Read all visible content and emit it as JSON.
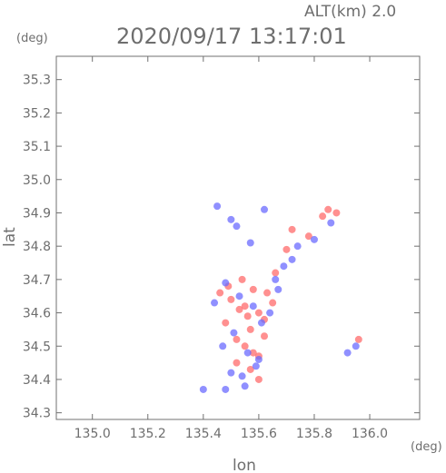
{
  "chart_data": {
    "type": "scatter",
    "title": "2020/09/17 13:17:01",
    "altitude_label": "ALT(km) 2.0",
    "xlabel": "lon",
    "ylabel": "lat",
    "x_unit": "(deg)",
    "y_unit": "(deg)",
    "xlim": [
      134.87,
      136.18
    ],
    "ylim": [
      34.28,
      35.37
    ],
    "xticks": [
      "135.0",
      "135.2",
      "135.4",
      "135.6",
      "135.8",
      "136.0"
    ],
    "yticks": [
      "34.3",
      "34.4",
      "34.5",
      "34.6",
      "34.7",
      "34.8",
      "34.9",
      "35.0",
      "35.1",
      "35.2",
      "35.3"
    ],
    "grid": false,
    "colors": {
      "positive": "#ff6b6b",
      "negative": "#6b6bff",
      "frame": "#707070"
    },
    "series": [
      {
        "color_role": "positive",
        "lon": [
          135.46,
          135.5,
          135.55,
          135.6,
          135.62,
          135.57,
          135.52,
          135.48,
          135.58,
          135.63,
          135.55,
          135.6,
          135.52,
          135.57,
          135.65,
          135.7,
          135.72,
          135.83,
          135.85,
          135.88,
          135.78,
          135.96,
          135.54,
          135.6,
          135.56,
          135.62,
          135.58,
          135.53,
          135.49,
          135.66
        ],
        "lat": [
          34.66,
          34.64,
          34.62,
          34.6,
          34.58,
          34.55,
          34.52,
          34.57,
          34.67,
          34.66,
          34.5,
          34.47,
          34.45,
          34.43,
          34.63,
          34.79,
          34.85,
          34.89,
          34.91,
          34.9,
          34.83,
          34.52,
          34.7,
          34.4,
          34.59,
          34.53,
          34.48,
          34.61,
          34.68,
          34.72
        ]
      },
      {
        "color_role": "negative",
        "lon": [
          135.44,
          135.48,
          135.53,
          135.58,
          135.61,
          135.64,
          135.51,
          135.47,
          135.56,
          135.59,
          135.54,
          135.5,
          135.66,
          135.69,
          135.74,
          135.8,
          135.86,
          135.92,
          135.95,
          135.45,
          135.52,
          135.57,
          135.62,
          135.4,
          135.48,
          135.55,
          135.6,
          135.67,
          135.72,
          135.5
        ],
        "lat": [
          34.63,
          34.69,
          34.65,
          34.62,
          34.57,
          34.6,
          34.54,
          34.5,
          34.48,
          34.44,
          34.41,
          34.42,
          34.7,
          34.74,
          34.8,
          34.82,
          34.87,
          34.48,
          34.5,
          34.92,
          34.86,
          34.81,
          34.91,
          34.37,
          34.37,
          34.38,
          34.46,
          34.67,
          34.76,
          34.88
        ]
      }
    ]
  }
}
